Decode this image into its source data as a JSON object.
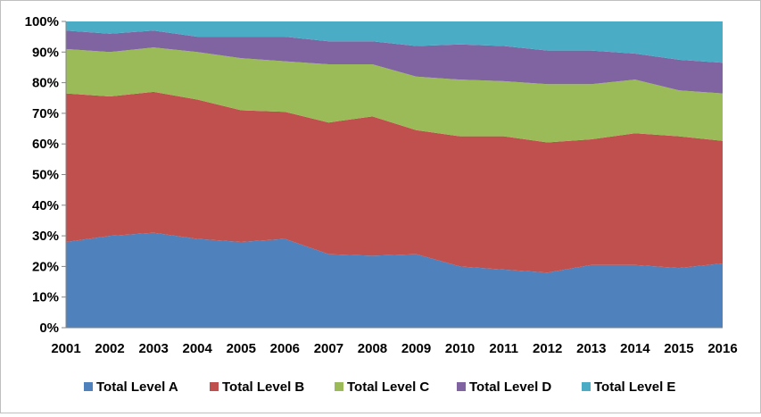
{
  "chart_data": {
    "type": "area",
    "stacked": "percent",
    "title": "",
    "xlabel": "",
    "ylabel": "",
    "x": [
      2001,
      2002,
      2003,
      2004,
      2005,
      2006,
      2007,
      2008,
      2009,
      2010,
      2011,
      2012,
      2013,
      2014,
      2015,
      2016
    ],
    "x_tick_labels": [
      "2001",
      "2002",
      "2003",
      "2004",
      "2005",
      "2006",
      "2007",
      "2008",
      "2009",
      "2010",
      "2011",
      "2012",
      "2013",
      "2014",
      "2015",
      "2016"
    ],
    "ylim": [
      0,
      100
    ],
    "y_tick_labels": [
      "0%",
      "10%",
      "20%",
      "30%",
      "40%",
      "50%",
      "60%",
      "70%",
      "80%",
      "90%",
      "100%"
    ],
    "grid": false,
    "legend_position": "bottom",
    "series": [
      {
        "name": "Total Level A",
        "color": "#4f81bd",
        "values": [
          28,
          30,
          31,
          29,
          28,
          29,
          24,
          23.5,
          24,
          20,
          19,
          18,
          20.5,
          20.5,
          19.5,
          21
        ]
      },
      {
        "name": "Total Level B",
        "color": "#c0504d",
        "values": [
          48.5,
          45.5,
          46,
          45.5,
          43,
          41.5,
          43,
          45.5,
          40.5,
          42.5,
          43.5,
          42.5,
          41,
          43,
          43,
          40
        ]
      },
      {
        "name": "Total Level C",
        "color": "#9bbb59",
        "values": [
          14.5,
          14.5,
          14.5,
          15.5,
          17,
          16.5,
          19,
          17,
          17.5,
          18.5,
          18,
          19,
          18,
          17.5,
          15,
          15.5
        ]
      },
      {
        "name": "Total Level D",
        "color": "#8064a2",
        "values": [
          6,
          6,
          5.5,
          5,
          7,
          8,
          7.5,
          7.5,
          10,
          11.5,
          11.5,
          11,
          11,
          8.5,
          10,
          10
        ]
      },
      {
        "name": "Total Level E",
        "color": "#4bacc6",
        "values": [
          3,
          4,
          3,
          5,
          5,
          5,
          6.5,
          6.5,
          8,
          7.5,
          8,
          9.5,
          9.5,
          10.5,
          12.5,
          13.5
        ]
      }
    ]
  }
}
